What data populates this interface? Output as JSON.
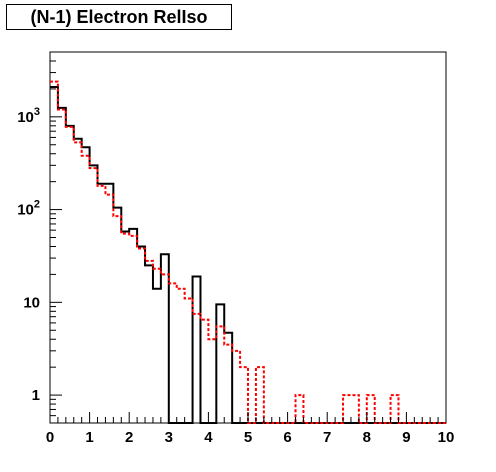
{
  "chart_data": {
    "type": "histogram",
    "title": "(N-1) Electron RelIso",
    "xlabel": "",
    "ylabel": "",
    "xlim": [
      0,
      10
    ],
    "ylim": [
      0.5,
      5000
    ],
    "ylog": true,
    "bin_width": 0.2,
    "x_ticks": [
      "0",
      "1",
      "2",
      "3",
      "4",
      "5",
      "6",
      "7",
      "8",
      "9",
      "10"
    ],
    "y_ticks": [
      {
        "value": 1,
        "label": "1"
      },
      {
        "value": 10,
        "label": "10"
      },
      {
        "value": 100,
        "label": "10^2"
      },
      {
        "value": 1000,
        "label": "10^3"
      }
    ],
    "grid": false,
    "legend": "none",
    "series": [
      {
        "style": "solid",
        "color": "#000000",
        "values": [
          2100,
          1250,
          800,
          580,
          470,
          300,
          190,
          190,
          105,
          58,
          62,
          40,
          25,
          14,
          33,
          0,
          0,
          0,
          19,
          0,
          0,
          9.5,
          4.7,
          0,
          0,
          0,
          0,
          0,
          0,
          0,
          0,
          0,
          0,
          0,
          0,
          0,
          0,
          0,
          0,
          0,
          0,
          0,
          0,
          0,
          0,
          0,
          0,
          0,
          0,
          0
        ]
      },
      {
        "style": "dashed",
        "color": "#ff0000",
        "values": [
          2400,
          1200,
          780,
          530,
          380,
          280,
          180,
          145,
          85,
          55,
          52,
          38,
          28,
          23,
          20,
          16,
          14,
          11,
          7.5,
          6.5,
          4,
          5.5,
          3.5,
          3.0,
          2.0,
          0,
          2.0,
          0,
          0,
          0,
          0,
          1.0,
          0,
          0,
          0,
          0,
          0,
          1.0,
          1.0,
          0,
          1.0,
          0,
          0,
          1.0,
          0,
          0,
          0,
          0,
          0,
          0
        ]
      }
    ]
  }
}
